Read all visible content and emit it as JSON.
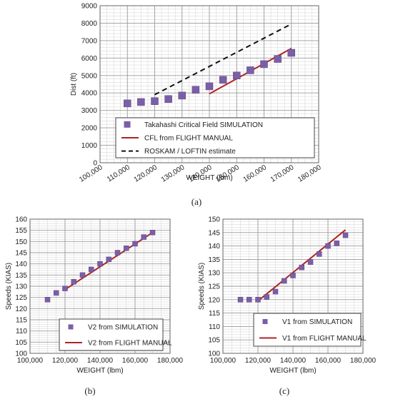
{
  "colors": {
    "marker": "#7b5fa6",
    "line": "#b22222",
    "dashed": "#111111",
    "grid_major": "#9a9a9a",
    "grid_minor": "#d9d9d9"
  },
  "chart_data": [
    {
      "id": "a",
      "type": "scatter",
      "caption": "(a)",
      "xlabel": "WEIGHT (lbm)",
      "ylabel": "Dist (ft)",
      "xlim": [
        100000,
        180000
      ],
      "ylim": [
        0,
        9000
      ],
      "xticks": [
        100000,
        110000,
        120000,
        130000,
        140000,
        150000,
        160000,
        170000,
        180000
      ],
      "yticks": [
        0,
        1000,
        2000,
        3000,
        4000,
        5000,
        6000,
        7000,
        8000,
        9000
      ],
      "xtick_labels": [
        "100,000",
        "110,000",
        "120,000",
        "130,000",
        "140,000",
        "150,000",
        "160,000",
        "170,000",
        "180,000"
      ],
      "ytick_labels": [
        "0",
        "1000",
        "2000",
        "3000",
        "4000",
        "5000",
        "6000",
        "7000",
        "8000",
        "9000"
      ],
      "legend_position": "bottom-center",
      "series": [
        {
          "name": "Takahashi Critical Field SIMULATION",
          "kind": "marker",
          "x": [
            110000,
            115000,
            120000,
            125000,
            130000,
            135000,
            140000,
            145000,
            150000,
            155000,
            160000,
            165000,
            170000
          ],
          "y": [
            3400,
            3480,
            3530,
            3650,
            3850,
            4180,
            4380,
            4750,
            5000,
            5300,
            5650,
            5950,
            6300
          ]
        },
        {
          "name": "CFL from FLIGHT MANUAL",
          "kind": "line",
          "x": [
            140000,
            170000
          ],
          "y": [
            3950,
            6550
          ]
        },
        {
          "name": "ROSKAM / LOFTIN estimate",
          "kind": "dashed",
          "x": [
            120000,
            170000
          ],
          "y": [
            3900,
            7950
          ]
        }
      ]
    },
    {
      "id": "b",
      "type": "scatter",
      "caption": "(b)",
      "xlabel": "WEIGHT (lbm)",
      "ylabel": "Speeds (KIAS)",
      "xlim": [
        100000,
        180000
      ],
      "ylim": [
        100,
        160
      ],
      "xticks": [
        100000,
        120000,
        140000,
        160000,
        180000
      ],
      "yticks": [
        100,
        105,
        110,
        115,
        120,
        125,
        130,
        135,
        140,
        145,
        150,
        155,
        160
      ],
      "xtick_labels": [
        "100,000",
        "120,000",
        "140,000",
        "160,000",
        "180,000"
      ],
      "ytick_labels": [
        "100",
        "105",
        "110",
        "115",
        "120",
        "125",
        "130",
        "135",
        "140",
        "145",
        "150",
        "155",
        "160"
      ],
      "legend_position": "bottom-right",
      "series": [
        {
          "name": "V2 from SIMULATION",
          "kind": "marker",
          "x": [
            110000,
            115000,
            120000,
            125000,
            130000,
            135000,
            140000,
            145000,
            150000,
            155000,
            160000,
            165000,
            170000
          ],
          "y": [
            124,
            127,
            129,
            132,
            135,
            137.5,
            140,
            142,
            145,
            147,
            149,
            152,
            154
          ]
        },
        {
          "name": "V2 from FLIGHT MANUAL",
          "kind": "line",
          "x": [
            120000,
            170000
          ],
          "y": [
            128.5,
            154
          ]
        }
      ]
    },
    {
      "id": "c",
      "type": "scatter",
      "caption": "(c)",
      "xlabel": "WEIGHT (lbm)",
      "ylabel": "Speeds (KIAS)",
      "xlim": [
        100000,
        180000
      ],
      "ylim": [
        100,
        150
      ],
      "xticks": [
        100000,
        120000,
        140000,
        160000,
        180000
      ],
      "yticks": [
        100,
        105,
        110,
        115,
        120,
        125,
        130,
        135,
        140,
        145,
        150
      ],
      "xtick_labels": [
        "100,000",
        "120,000",
        "140,000",
        "160,000",
        "180,000"
      ],
      "ytick_labels": [
        "100",
        "105",
        "110",
        "115",
        "120",
        "125",
        "130",
        "135",
        "140",
        "145",
        "150"
      ],
      "legend_position": "bottom-right",
      "series": [
        {
          "name": "V1 from SIMULATION",
          "kind": "marker",
          "x": [
            110000,
            115000,
            120000,
            125000,
            130000,
            135000,
            140000,
            145000,
            150000,
            155000,
            160000,
            165000,
            170000
          ],
          "y": [
            120,
            120,
            120,
            121,
            123,
            127,
            129,
            132,
            134,
            137,
            140,
            141,
            144
          ]
        },
        {
          "name": "V1 from FLIGHT MANUAL",
          "kind": "line",
          "x": [
            120000,
            170000
          ],
          "y": [
            119.5,
            146
          ]
        }
      ]
    }
  ]
}
